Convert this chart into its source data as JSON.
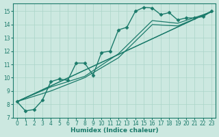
{
  "xlabel": "Humidex (Indice chaleur)",
  "ylabel": "",
  "background_color": "#cce8e0",
  "grid_color": "#aad4c8",
  "line_color": "#1a7a6a",
  "xlim": [
    -0.5,
    23.5
  ],
  "ylim": [
    7.0,
    15.6
  ],
  "xticks": [
    0,
    1,
    2,
    3,
    4,
    5,
    6,
    7,
    8,
    9,
    10,
    11,
    12,
    13,
    14,
    15,
    16,
    17,
    18,
    19,
    20,
    21,
    22,
    23
  ],
  "yticks": [
    7,
    8,
    9,
    10,
    11,
    12,
    13,
    14,
    15
  ],
  "lines": [
    {
      "x": [
        0,
        1,
        2,
        3,
        4,
        5,
        6,
        7,
        8,
        9,
        10,
        11,
        12,
        13,
        14,
        15,
        16,
        17,
        18,
        19,
        20,
        21,
        22,
        23
      ],
      "y": [
        8.2,
        7.5,
        7.6,
        8.3,
        9.7,
        9.9,
        9.8,
        11.1,
        11.1,
        10.2,
        11.9,
        12.0,
        13.6,
        13.8,
        15.0,
        15.3,
        15.25,
        14.75,
        14.9,
        14.35,
        14.5,
        14.5,
        14.6,
        15.0
      ],
      "marker": "D",
      "markersize": 2.5,
      "linewidth": 1.0,
      "has_marker": true
    },
    {
      "x": [
        0,
        23
      ],
      "y": [
        8.2,
        15.0
      ],
      "marker": null,
      "markersize": 0,
      "linewidth": 0.9,
      "has_marker": false
    },
    {
      "x": [
        0,
        23
      ],
      "y": [
        8.2,
        15.0
      ],
      "marker": null,
      "markersize": 0,
      "linewidth": 0.9,
      "has_marker": false
    },
    {
      "x": [
        0,
        4,
        8,
        12,
        16,
        19,
        23
      ],
      "y": [
        8.2,
        9.3,
        10.1,
        11.8,
        14.3,
        14.1,
        14.95
      ],
      "marker": null,
      "markersize": 0,
      "linewidth": 0.9,
      "has_marker": false
    },
    {
      "x": [
        0,
        4,
        8,
        12,
        16,
        19,
        23
      ],
      "y": [
        8.2,
        9.0,
        10.0,
        11.5,
        14.0,
        13.9,
        14.95
      ],
      "marker": null,
      "markersize": 0,
      "linewidth": 0.9,
      "has_marker": false
    }
  ],
  "tick_fontsize": 5.5,
  "xlabel_fontsize": 6.5
}
